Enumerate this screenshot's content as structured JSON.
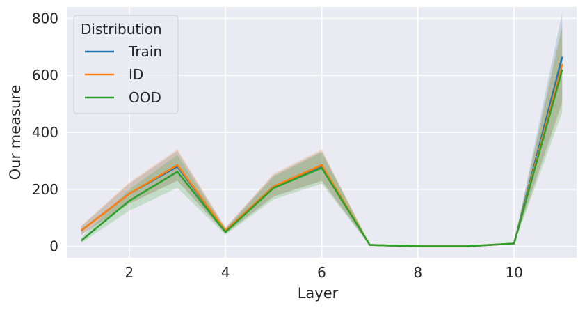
{
  "chart_data": {
    "type": "line",
    "xlabel": "Layer",
    "ylabel": "Our measure",
    "xlim": [
      0.7,
      11.3
    ],
    "ylim": [
      -40,
      840
    ],
    "x_ticks": [
      2,
      4,
      6,
      8,
      10
    ],
    "y_ticks": [
      0,
      200,
      400,
      600,
      800
    ],
    "grid": true,
    "legend": {
      "title": "Distribution",
      "placement": "top-left"
    },
    "x": [
      1,
      2,
      3,
      4,
      5,
      6,
      7,
      8,
      9,
      10,
      11
    ],
    "series": [
      {
        "name": "Train",
        "color": "#1f77b4",
        "values": [
          55,
          185,
          280,
          55,
          210,
          280,
          5,
          0,
          0,
          10,
          665
        ],
        "lower": [
          40,
          150,
          230,
          45,
          175,
          230,
          3,
          0,
          0,
          7,
          510
        ],
        "upper": [
          70,
          220,
          335,
          65,
          250,
          335,
          7,
          0,
          0,
          13,
          820
        ]
      },
      {
        "name": "ID",
        "color": "#ff7f0e",
        "values": [
          55,
          185,
          285,
          55,
          210,
          285,
          5,
          0,
          0,
          10,
          640
        ],
        "lower": [
          40,
          150,
          230,
          45,
          175,
          230,
          3,
          0,
          0,
          7,
          500
        ],
        "upper": [
          72,
          225,
          340,
          66,
          255,
          340,
          7,
          0,
          0,
          13,
          780
        ]
      },
      {
        "name": "OOD",
        "color": "#2ca02c",
        "values": [
          20,
          160,
          262,
          50,
          205,
          275,
          5,
          0,
          0,
          10,
          620
        ],
        "lower": [
          12,
          125,
          205,
          40,
          165,
          220,
          3,
          0,
          0,
          7,
          470
        ],
        "upper": [
          30,
          200,
          320,
          60,
          245,
          330,
          7,
          0,
          0,
          13,
          770
        ]
      }
    ]
  }
}
